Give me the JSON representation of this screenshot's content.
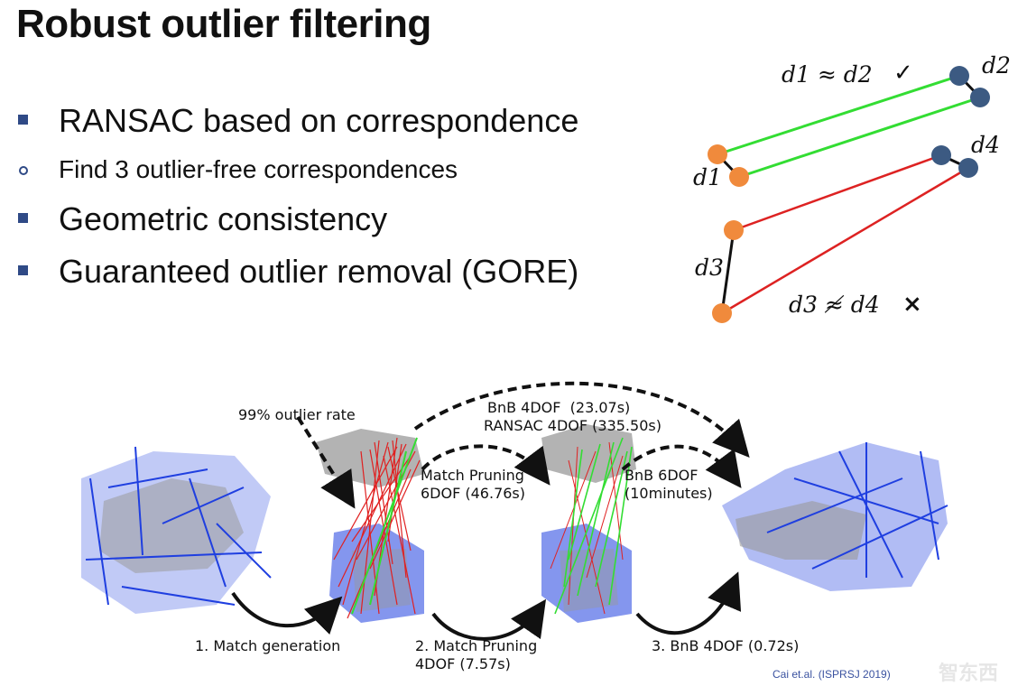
{
  "slide": {
    "title": "Robust outlier filtering",
    "bullets": [
      {
        "type": "square",
        "text": "RANSAC based on correspondence"
      },
      {
        "type": "circle",
        "text": "Find 3 outlier-free correspondences"
      },
      {
        "type": "square",
        "text": "Geometric consistency"
      },
      {
        "type": "square",
        "text": "Guaranteed outlier removal (GORE)"
      }
    ],
    "bullet_color": "#2f4a86"
  },
  "diagram": {
    "eq_consistent": "d1 ≈ d2",
    "check_mark": "✓",
    "eq_inconsistent": "d3 ≉ d4",
    "cross_mark": "×",
    "labels": {
      "d1": "d1",
      "d2": "d2",
      "d3": "d3",
      "d4": "d4"
    },
    "colors": {
      "source_point": "#f08a3c",
      "target_point": "#3c5a82",
      "inlier_line": "#33dd33",
      "outlier_line": "#dd2222"
    }
  },
  "figure": {
    "outlier_rate": "99% outlier rate",
    "bnb_4dof_top": "BnB 4DOF  (23.07s)",
    "ransac_4dof": "RANSAC 4DOF (335.50s)",
    "match_pruning_6dof": "Match Pruning\n6DOF (46.76s)",
    "bnb_6dof": "BnB 6DOF\n(10minutes)",
    "step1": "1. Match generation",
    "step2": "2. Match Pruning\n4DOF (7.57s)",
    "step3": "3. BnB 4DOF (0.72s)",
    "citation": "Cai et.al. (ISPRSJ 2019)",
    "colors": {
      "cloud_a": "#1f3fe0",
      "cloud_b": "#9a9a9a"
    }
  },
  "watermark": "智东西"
}
